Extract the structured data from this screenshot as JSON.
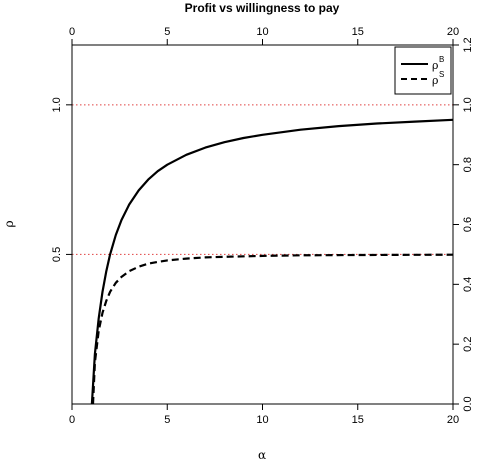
{
  "chart_data": {
    "type": "line",
    "title": "Profit vs willingness to pay",
    "xlabel": "α",
    "ylabel": "ρ",
    "xlim": [
      0,
      20
    ],
    "ylim_left": [
      0,
      1.2
    ],
    "ylim_right": [
      0,
      1.2
    ],
    "x_ticks": [
      0,
      5,
      10,
      15,
      20
    ],
    "x_tick_labels": [
      "0",
      "5",
      "10",
      "15",
      "20"
    ],
    "y_left_ticks": [
      0.5,
      1.0
    ],
    "y_left_tick_labels": [
      "0.5",
      "1.0"
    ],
    "y_right_ticks": [
      0,
      0.2,
      0.4,
      0.6,
      0.8,
      1.0,
      1.2
    ],
    "y_right_tick_labels": [
      "0.0",
      "0.2",
      "0.4",
      "0.6",
      "0.8",
      "1.0",
      "1.2"
    ],
    "reference_lines": [
      {
        "y": 1.0,
        "color": "#e04040",
        "style": "dotted"
      },
      {
        "y": 0.5,
        "color": "#e04040",
        "style": "dotted"
      }
    ],
    "legend": {
      "position": "top-right",
      "entries": [
        {
          "label": "ρ",
          "subscript": "B",
          "style": "solid"
        },
        {
          "label": "ρ",
          "subscript": "S",
          "style": "dashed"
        }
      ]
    },
    "series": [
      {
        "label": "ρ",
        "subscript": "B",
        "style": "solid",
        "x": [
          1.0,
          1.2,
          1.4,
          1.6,
          1.8,
          2.0,
          2.3,
          2.6,
          3.0,
          3.5,
          4.0,
          4.5,
          5.0,
          6.0,
          7.0,
          8.0,
          9.0,
          10.0,
          12.0,
          14.0,
          16.0,
          18.0,
          20.0
        ],
        "y": [
          -0.05,
          0.167,
          0.286,
          0.375,
          0.444,
          0.5,
          0.565,
          0.615,
          0.667,
          0.714,
          0.75,
          0.778,
          0.8,
          0.833,
          0.857,
          0.875,
          0.889,
          0.9,
          0.917,
          0.929,
          0.9375,
          0.944,
          0.95
        ]
      },
      {
        "label": "ρ",
        "subscript": "S",
        "style": "dashed",
        "x": [
          1.1,
          1.2,
          1.4,
          1.6,
          1.8,
          2.0,
          2.3,
          2.6,
          3.0,
          3.5,
          4.0,
          4.5,
          5.0,
          6.0,
          7.0,
          8.0,
          10.0,
          12.0,
          15.0,
          20.0
        ],
        "y": [
          0.0,
          0.139,
          0.245,
          0.305,
          0.345,
          0.375,
          0.405,
          0.425,
          0.444,
          0.459,
          0.469,
          0.475,
          0.48,
          0.486,
          0.49,
          0.492,
          0.495,
          0.497,
          0.498,
          0.499
        ]
      }
    ]
  }
}
